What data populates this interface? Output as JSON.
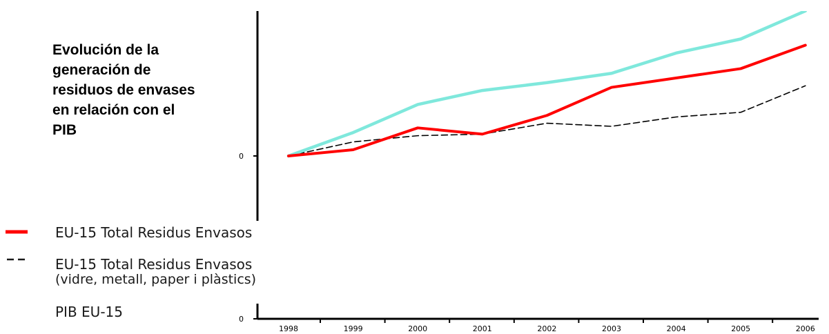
{
  "title_lines": [
    "Evolución de la",
    "generación de",
    "residuos de envases",
    "en relación con el",
    "PIB"
  ],
  "chart_data": {
    "type": "line",
    "x": [
      "1998",
      "1999",
      "2000",
      "2001",
      "2002",
      "2003",
      "2004",
      "2005",
      "2006"
    ],
    "y_tick_labels": [
      "0",
      "0"
    ],
    "grid": false,
    "legend_position": "bottom-left",
    "series": [
      {
        "name": "EU-15 Total Residus Envasos",
        "style": "solid-thick",
        "color": "#ff0000",
        "values": [
          0,
          4,
          18,
          14,
          26,
          44,
          50,
          56,
          71
        ]
      },
      {
        "name": "EU-15 Total Residus Envasos",
        "name_detail": "(vidre, metall, paper i plàstics)",
        "style": "dashed",
        "color": "#000000",
        "values": [
          0,
          9,
          13,
          14,
          21,
          19,
          25,
          28,
          45
        ]
      },
      {
        "name": "PIB EU-15",
        "style": "solid-thick",
        "color": "#7fe8dc",
        "values": [
          0,
          15,
          33,
          42,
          47,
          53,
          66,
          75,
          93
        ]
      }
    ]
  }
}
